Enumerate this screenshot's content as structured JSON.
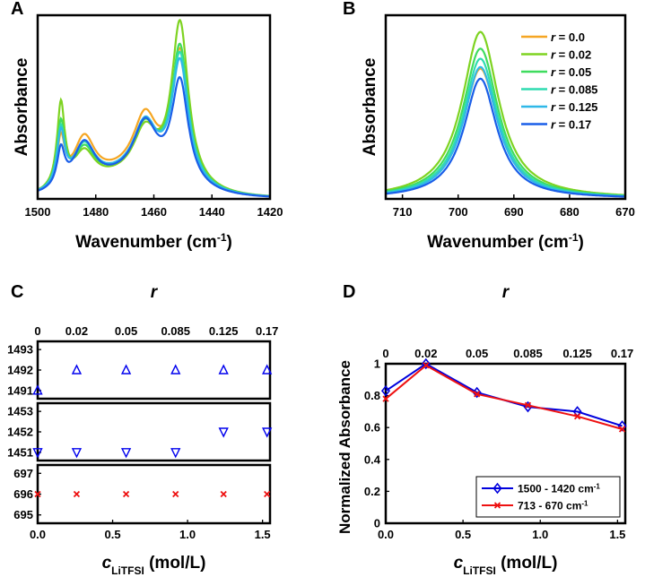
{
  "colors": {
    "r0.0": "#f5a623",
    "r0.02": "#7ed321",
    "r0.05": "#3fdc5e",
    "r0.085": "#2fdcb0",
    "r0.125": "#2fb8e8",
    "r0.17": "#1a5ee8",
    "blue_marker": "#0000ee",
    "red_marker": "#ee1111",
    "lineD_blue": "#0000dd",
    "lineD_red": "#ee1111"
  },
  "chart_data": [
    {
      "panel": "A",
      "type": "line",
      "xlabel": "Wavenumber (cm-1)",
      "xlabel_main": "Wavenumber (cm",
      "xlabel_sup": "-1",
      "xlabel_end": ")",
      "ylabel": "Absorbance",
      "xlim": [
        1500,
        1420
      ],
      "ylim": [
        0,
        1.1
      ],
      "x_ticks": [
        "1500",
        "1480",
        "1460",
        "1440",
        "1420"
      ],
      "x_tick_values": [
        1500,
        1480,
        1460,
        1440,
        1420
      ],
      "y_ticks_shown": false,
      "peaks": [
        {
          "center": 1492,
          "width": 1.6
        },
        {
          "center": 1484,
          "width": 4.5
        },
        {
          "center": 1463,
          "width": 5.0
        },
        {
          "center": 1451,
          "width": 3.5
        }
      ],
      "series": [
        {
          "name": "r = 0.0",
          "color_key": "r0.0",
          "peak_heights": [
            0.28,
            0.28,
            0.35,
            0.78
          ],
          "baseline": 0.12
        },
        {
          "name": "r = 0.02",
          "color_key": "r0.02",
          "peak_heights": [
            0.5,
            0.2,
            0.28,
            0.97
          ],
          "baseline": 0.1
        },
        {
          "name": "r = 0.05",
          "color_key": "r0.05",
          "peak_heights": [
            0.38,
            0.22,
            0.3,
            0.82
          ],
          "baseline": 0.11
        },
        {
          "name": "r = 0.085",
          "color_key": "r0.085",
          "peak_heights": [
            0.34,
            0.24,
            0.31,
            0.77
          ],
          "baseline": 0.11
        },
        {
          "name": "r = 0.125",
          "color_key": "r0.125",
          "peak_heights": [
            0.32,
            0.25,
            0.32,
            0.73
          ],
          "baseline": 0.11
        },
        {
          "name": "r = 0.17",
          "color_key": "r0.17",
          "peak_heights": [
            0.22,
            0.26,
            0.33,
            0.62
          ],
          "baseline": 0.1
        }
      ]
    },
    {
      "panel": "B",
      "type": "line",
      "xlabel": "Wavenumber (cm-1)",
      "xlabel_main": "Wavenumber (cm",
      "xlabel_sup": "-1",
      "xlabel_end": ")",
      "ylabel": "Absorbance",
      "xlim": [
        713,
        670
      ],
      "ylim": [
        0,
        1.1
      ],
      "x_ticks": [
        "710",
        "700",
        "690",
        "680",
        "670"
      ],
      "x_tick_values": [
        710,
        700,
        690,
        680,
        670
      ],
      "y_ticks_shown": false,
      "center": 696,
      "series": [
        {
          "name": "r = 0.0",
          "color_key": "r0.0",
          "height": 0.78,
          "width": 3.8
        },
        {
          "name": "r = 0.02",
          "color_key": "r0.02",
          "height": 1.0,
          "width": 4.0
        },
        {
          "name": "r = 0.05",
          "color_key": "r0.05",
          "height": 0.9,
          "width": 3.9
        },
        {
          "name": "r = 0.085",
          "color_key": "r0.085",
          "height": 0.84,
          "width": 3.8
        },
        {
          "name": "r = 0.125",
          "color_key": "r0.125",
          "height": 0.79,
          "width": 3.7
        },
        {
          "name": "r = 0.17",
          "color_key": "r0.17",
          "height": 0.72,
          "width": 3.6
        }
      ],
      "legend": {
        "location": "top-right",
        "entries": [
          {
            "prefix": "r",
            "value": " = 0.0",
            "color_key": "r0.0"
          },
          {
            "prefix": "r",
            "value": " = 0.02",
            "color_key": "r0.02"
          },
          {
            "prefix": "r",
            "value": " = 0.05",
            "color_key": "r0.05"
          },
          {
            "prefix": "r",
            "value": " = 0.085",
            "color_key": "r0.085"
          },
          {
            "prefix": "r",
            "value": " = 0.125",
            "color_key": "r0.125"
          },
          {
            "prefix": "r",
            "value": " = 0.17",
            "color_key": "r0.17"
          }
        ]
      }
    },
    {
      "panel": "C",
      "type": "scatter",
      "xlabel_var": "c",
      "xlabel_sub": "LiTFSI",
      "xlabel_unit": " (mol/L)",
      "xlim": [
        0,
        1.55
      ],
      "x_ticks": [
        "0.0",
        "0.5",
        "1.0",
        "1.5"
      ],
      "x_tick_values": [
        0.0,
        0.5,
        1.0,
        1.5
      ],
      "top_axis_label": "r",
      "top_ticks": [
        "0",
        "0.02",
        "0.05",
        "0.085",
        "0.125",
        "0.17"
      ],
      "concentrations": [
        0.0,
        0.26,
        0.59,
        0.92,
        1.24,
        1.53
      ],
      "subplots": [
        {
          "ylim": [
            1490.6,
            1493.4
          ],
          "y_ticks": [
            "1493",
            "1492",
            "1491"
          ],
          "y_tick_values": [
            1493,
            1492,
            1491
          ],
          "marker": "triangle-up",
          "color_key": "blue_marker",
          "values": [
            1491,
            1492,
            1492,
            1492,
            1492,
            1492
          ]
        },
        {
          "ylim": [
            1450.6,
            1453.4
          ],
          "y_ticks": [
            "1453",
            "1452",
            "1451"
          ],
          "y_tick_values": [
            1453,
            1452,
            1451
          ],
          "marker": "triangle-down",
          "color_key": "blue_marker",
          "values": [
            1451,
            1451,
            1451,
            1451,
            1452,
            1452
          ]
        },
        {
          "ylim": [
            694.6,
            697.4
          ],
          "y_ticks": [
            "697",
            "696",
            "695"
          ],
          "y_tick_values": [
            697,
            696,
            695
          ],
          "marker": "x",
          "color_key": "red_marker",
          "values": [
            696,
            696,
            696,
            696,
            696,
            696
          ]
        }
      ]
    },
    {
      "panel": "D",
      "type": "line",
      "ylabel": "Normalized Absorbance",
      "xlabel_var": "c",
      "xlabel_sub": "LiTFSI",
      "xlabel_unit": " (mol/L)",
      "xlim": [
        0,
        1.55
      ],
      "ylim": [
        0,
        1.0
      ],
      "x_ticks": [
        "0.0",
        "0.5",
        "1.0",
        "1.5"
      ],
      "x_tick_values": [
        0.0,
        0.5,
        1.0,
        1.5
      ],
      "y_ticks": [
        "0",
        "0.2",
        "0.4",
        "0.6",
        "0.8",
        "1"
      ],
      "y_tick_values": [
        0,
        0.2,
        0.4,
        0.6,
        0.8,
        1.0
      ],
      "top_axis_label": "r",
      "top_ticks": [
        "0",
        "0.02",
        "0.05",
        "0.085",
        "0.125",
        "0.17"
      ],
      "concentrations": [
        0.0,
        0.26,
        0.59,
        0.92,
        1.24,
        1.53
      ],
      "series": [
        {
          "name": "1500 - 1420 cm-1",
          "label_main": "1500 - 1420 cm",
          "label_sup": "-1",
          "marker": "diamond",
          "color_key": "lineD_blue",
          "values": [
            0.83,
            1.0,
            0.82,
            0.73,
            0.7,
            0.61
          ]
        },
        {
          "name": "713 - 670 cm-1",
          "label_main": "713 - 670 cm",
          "label_sup": "-1",
          "marker": "x",
          "color_key": "lineD_red",
          "values": [
            0.78,
            0.99,
            0.81,
            0.74,
            0.67,
            0.59
          ]
        }
      ],
      "legend_location": "bottom-right"
    }
  ],
  "panel_labels": [
    "A",
    "B",
    "C",
    "D"
  ]
}
